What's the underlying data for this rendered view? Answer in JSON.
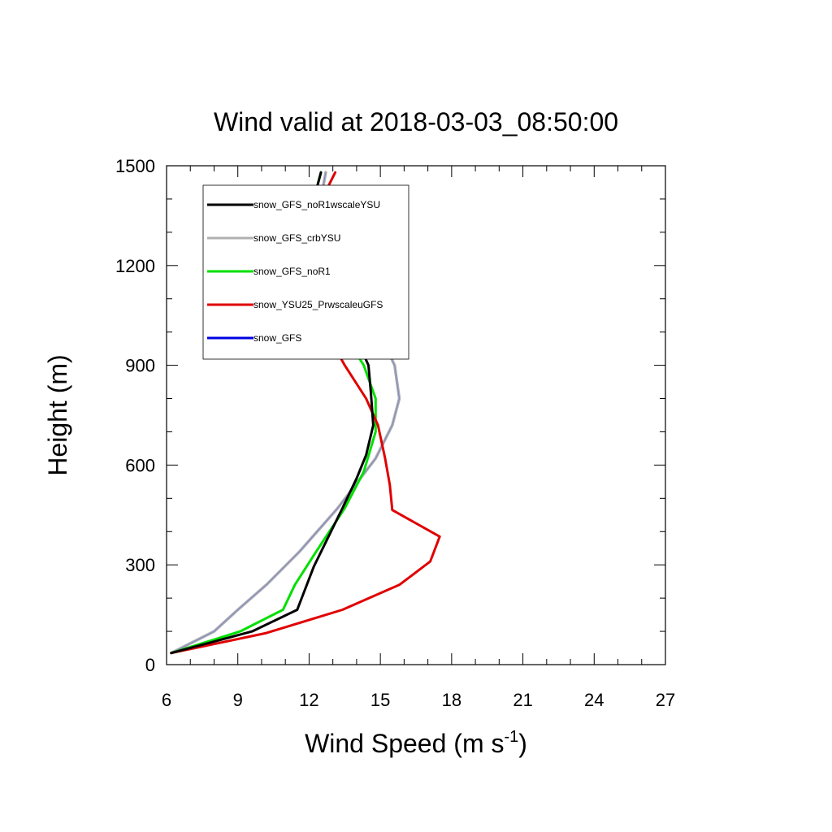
{
  "chart_data": {
    "type": "line",
    "title": "Wind valid at 2018-03-03_08:50:00",
    "xlabel": "Wind Speed (m s",
    "xlabel_superscript": "-1",
    "xlabel_suffix": ")",
    "ylabel": "Height (m)",
    "xlim": [
      6,
      27
    ],
    "ylim": [
      0,
      1500
    ],
    "xticks": [
      6,
      9,
      12,
      15,
      18,
      21,
      24,
      27
    ],
    "yticks": [
      0,
      300,
      600,
      900,
      1200,
      1500
    ],
    "grid": false,
    "legend_position": "top-left",
    "series": [
      {
        "name": "snow_GFS_noR1wscaleYSU",
        "color": "#000000",
        "points": [
          [
            6.2,
            35
          ],
          [
            9.6,
            100
          ],
          [
            11.5,
            165
          ],
          [
            12.2,
            295
          ],
          [
            13.4,
            470
          ],
          [
            14.0,
            560
          ],
          [
            14.4,
            630
          ],
          [
            14.7,
            720
          ],
          [
            14.6,
            820
          ],
          [
            14.5,
            900
          ],
          [
            14.0,
            980
          ],
          [
            13.2,
            1050
          ],
          [
            12.4,
            1120
          ],
          [
            11.9,
            1170
          ],
          [
            11.6,
            1230
          ],
          [
            11.7,
            1300
          ],
          [
            12.2,
            1400
          ],
          [
            12.5,
            1480
          ]
        ]
      },
      {
        "name": "snow_GFS_crbYSU",
        "color": "#b0b0b0",
        "points": [
          [
            6.2,
            35
          ],
          [
            8.0,
            100
          ],
          [
            9.0,
            165
          ],
          [
            10.2,
            240
          ],
          [
            11.6,
            340
          ],
          [
            13.2,
            470
          ],
          [
            14.8,
            620
          ],
          [
            15.5,
            720
          ],
          [
            15.8,
            800
          ],
          [
            15.6,
            900
          ],
          [
            15.0,
            990
          ],
          [
            13.9,
            1080
          ],
          [
            12.8,
            1160
          ],
          [
            12.3,
            1230
          ],
          [
            12.3,
            1300
          ],
          [
            12.5,
            1400
          ],
          [
            12.7,
            1480
          ]
        ]
      },
      {
        "name": "snow_GFS_noR1",
        "color": "#00e000",
        "points": [
          [
            6.2,
            35
          ],
          [
            9.1,
            100
          ],
          [
            10.9,
            165
          ],
          [
            11.4,
            240
          ],
          [
            12.3,
            340
          ],
          [
            13.5,
            470
          ],
          [
            14.3,
            580
          ],
          [
            14.8,
            700
          ],
          [
            14.8,
            800
          ],
          [
            14.3,
            900
          ],
          [
            13.6,
            980
          ],
          [
            12.8,
            1060
          ],
          [
            12.0,
            1130
          ],
          [
            11.5,
            1190
          ],
          [
            11.5,
            1240
          ],
          [
            11.7,
            1310
          ],
          [
            12.2,
            1400
          ],
          [
            12.5,
            1480
          ]
        ]
      },
      {
        "name": "snow_YSU25_PrwscaleuGFS",
        "color": "#e00000",
        "points": [
          [
            6.2,
            35
          ],
          [
            10.2,
            95
          ],
          [
            13.4,
            165
          ],
          [
            15.8,
            240
          ],
          [
            17.1,
            310
          ],
          [
            17.5,
            385
          ],
          [
            15.5,
            465
          ],
          [
            15.4,
            540
          ],
          [
            15.2,
            620
          ],
          [
            14.9,
            720
          ],
          [
            14.4,
            800
          ],
          [
            13.5,
            900
          ],
          [
            12.8,
            990
          ],
          [
            12.2,
            1070
          ],
          [
            11.8,
            1150
          ],
          [
            11.7,
            1230
          ],
          [
            11.9,
            1280
          ],
          [
            12.4,
            1380
          ],
          [
            13.1,
            1480
          ]
        ]
      },
      {
        "name": "snow_GFS",
        "color": "#0000e0",
        "points": [
          [
            6.2,
            35
          ],
          [
            8.0,
            100
          ],
          [
            9.0,
            165
          ],
          [
            10.2,
            240
          ],
          [
            11.6,
            340
          ],
          [
            13.2,
            470
          ],
          [
            14.8,
            620
          ],
          [
            15.5,
            720
          ],
          [
            15.8,
            800
          ],
          [
            15.6,
            900
          ],
          [
            15.0,
            990
          ],
          [
            13.9,
            1080
          ],
          [
            12.8,
            1160
          ],
          [
            12.3,
            1230
          ],
          [
            12.3,
            1300
          ],
          [
            12.5,
            1400
          ],
          [
            12.7,
            1480
          ]
        ]
      }
    ]
  }
}
